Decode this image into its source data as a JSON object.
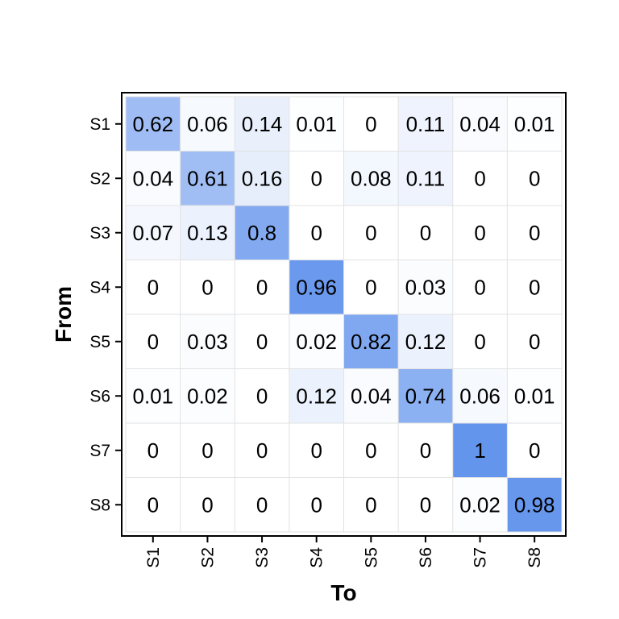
{
  "chart_data": {
    "type": "heatmap",
    "xlabel": "To",
    "ylabel": "From",
    "x_categories": [
      "S1",
      "S2",
      "S3",
      "S4",
      "S5",
      "S6",
      "S7",
      "S8"
    ],
    "y_categories": [
      "S1",
      "S2",
      "S3",
      "S4",
      "S5",
      "S6",
      "S7",
      "S8"
    ],
    "values": [
      [
        0.62,
        0.06,
        0.14,
        0.01,
        0,
        0.11,
        0.04,
        0.01
      ],
      [
        0.04,
        0.61,
        0.16,
        0,
        0.08,
        0.11,
        0,
        0
      ],
      [
        0.07,
        0.13,
        0.8,
        0,
        0,
        0,
        0,
        0
      ],
      [
        0,
        0,
        0,
        0.96,
        0,
        0.03,
        0,
        0
      ],
      [
        0,
        0.03,
        0,
        0.02,
        0.82,
        0.12,
        0,
        0
      ],
      [
        0.01,
        0.02,
        0,
        0.12,
        0.04,
        0.74,
        0.06,
        0.01
      ],
      [
        0,
        0,
        0,
        0,
        0,
        0,
        1,
        0
      ],
      [
        0,
        0,
        0,
        0,
        0,
        0,
        0.02,
        0.98
      ]
    ],
    "color_low": "#ffffff",
    "color_high": "#6495ed",
    "grid": true,
    "legend": "none"
  }
}
